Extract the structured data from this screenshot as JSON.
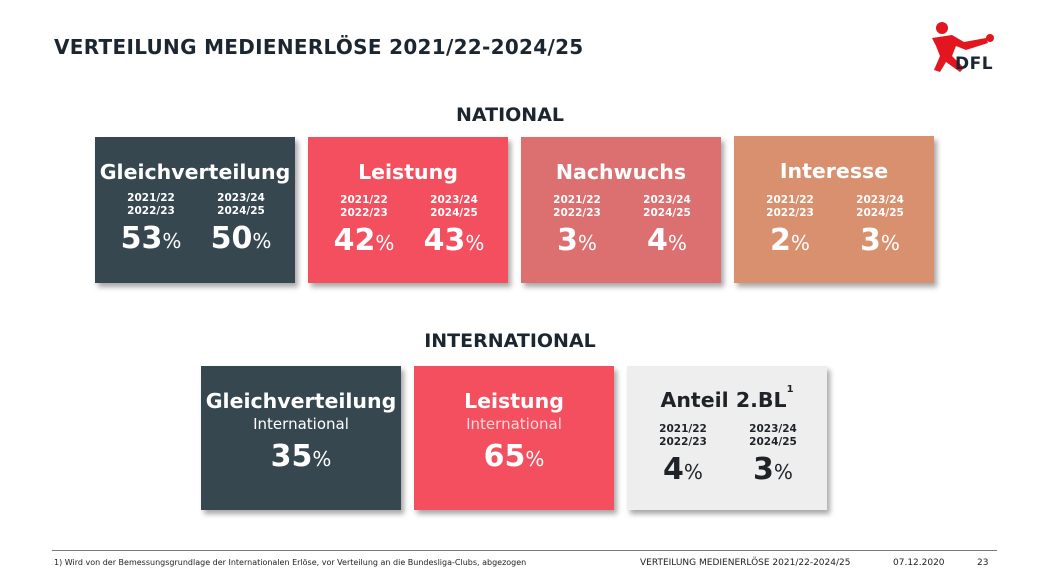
{
  "header": {
    "title": "VERTEILUNG MEDIENERLÖSE 2021/22-2024/25",
    "logo_text": "DFL"
  },
  "national": {
    "heading": "NATIONAL",
    "cards": [
      {
        "name": "Gleichverteilung",
        "col1_years": "2021/22\n2022/23",
        "col1_value": "53",
        "col2_years": "2023/24\n2024/25",
        "col2_value": "50",
        "unit": "%"
      },
      {
        "name": "Leistung",
        "col1_years": "2021/22\n2022/23",
        "col1_value": "42",
        "col2_years": "2023/24\n2024/25",
        "col2_value": "43",
        "unit": "%"
      },
      {
        "name": "Nachwuchs",
        "col1_years": "2021/22\n2022/23",
        "col1_value": "3",
        "col2_years": "2023/24\n2024/25",
        "col2_value": "4",
        "unit": "%"
      },
      {
        "name": "Interesse",
        "col1_years": "2021/22\n2022/23",
        "col1_value": "2",
        "col2_years": "2023/24\n2024/25",
        "col2_value": "3",
        "unit": "%"
      }
    ]
  },
  "international": {
    "heading": "INTERNATIONAL",
    "cards": [
      {
        "name": "Gleichverteilung",
        "sub": "International",
        "value": "35",
        "unit": "%"
      },
      {
        "name": "Leistung",
        "sub": "International",
        "value": "65",
        "unit": "%"
      },
      {
        "name": "Anteil 2.BL",
        "footnote_mark": "1",
        "col1_years": "2021/22\n2022/23",
        "col1_value": "4",
        "col2_years": "2023/24\n2024/25",
        "col2_value": "3",
        "unit": "%"
      }
    ]
  },
  "footer": {
    "note": "1) Wird von der Bemessungsgrundlage der Internationalen Erlöse, vor Verteilung an die Bundesliga-Clubs, abgezogen",
    "doc_title": "VERTEILUNG MEDIENERLÖSE 2021/22-2024/25",
    "date": "07.12.2020",
    "page": "23"
  },
  "colors": {
    "dark": "#37474f",
    "red": "#f34f5e",
    "rose": "#dc6f6f",
    "tan": "#d8906f",
    "light": "#eeeeee",
    "logo_red": "#e3161f"
  },
  "icons": {
    "logo": "dfl-logo-player-icon"
  }
}
